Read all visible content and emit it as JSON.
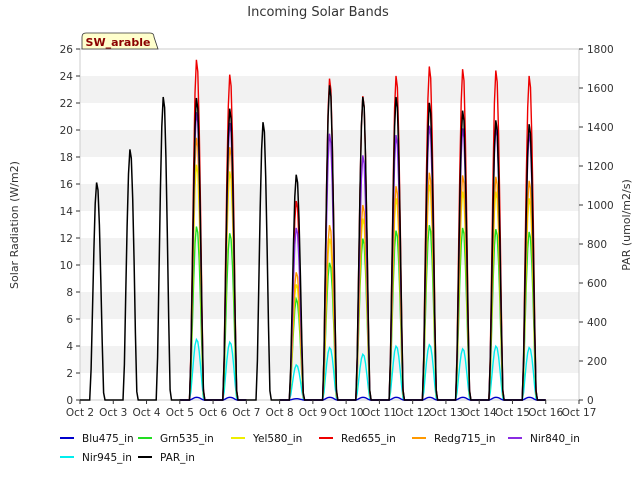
{
  "chart_data": {
    "type": "line",
    "title": "Incoming Solar Bands",
    "tag": "SW_arable",
    "ylabel_left": "Solar Radiation (W/m2)",
    "ylabel_right": "PAR (umol/m2/s)",
    "xlabel": "",
    "x_ticks": [
      "Oct 2",
      "Oct 3",
      "Oct 4",
      "Oct 5",
      "Oct 6",
      "Oct 7",
      "Oct 8",
      "Oct 9",
      "Oct 10",
      "Oct 11",
      "Oct 12",
      "Oct 13",
      "Oct 14",
      "Oct 15",
      "Oct 16",
      "Oct 17"
    ],
    "xlim": [
      0,
      15
    ],
    "ylim_left": [
      0,
      26
    ],
    "ylim_right": [
      0,
      1800
    ],
    "y_ticks_left": [
      "0",
      "2",
      "4",
      "6",
      "8",
      "10",
      "12",
      "14",
      "16",
      "18",
      "20",
      "22",
      "24",
      "26"
    ],
    "y_ticks_right": [
      "0",
      "200",
      "400",
      "600",
      "800",
      "1000",
      "1200",
      "1400",
      "1600",
      "1800"
    ],
    "grid": "horizontal bands",
    "legend_position": "bottom",
    "days": [
      {
        "start": "Oct 2",
        "Blu475_in": null,
        "Grn535_in": null,
        "Yel580_in": null,
        "Red655_in": null,
        "Redg715_in": null,
        "Nir840_in": null,
        "Nir945_in": null,
        "PAR_in": 1120
      },
      {
        "start": "Oct 3",
        "Blu475_in": null,
        "Grn535_in": null,
        "Yel580_in": null,
        "Red655_in": null,
        "Redg715_in": null,
        "Nir840_in": null,
        "Nir945_in": null,
        "PAR_in": 1290
      },
      {
        "start": "Oct 4",
        "Blu475_in": null,
        "Grn535_in": null,
        "Yel580_in": null,
        "Red655_in": null,
        "Redg715_in": null,
        "Nir840_in": null,
        "Nir945_in": null,
        "PAR_in": 1560
      },
      {
        "start": "Oct 5",
        "Blu475_in": 0.2,
        "Grn535_in": 12.9,
        "Yel580_in": 17.5,
        "Red655_in": 25.3,
        "Redg715_in": 19.5,
        "Nir840_in": 21.4,
        "Nir945_in": 4.5,
        "PAR_in": 1555
      },
      {
        "start": "Oct 6",
        "Blu475_in": 0.2,
        "Grn535_in": 12.4,
        "Yel580_in": 17.0,
        "Red655_in": 24.2,
        "Redg715_in": 18.8,
        "Nir840_in": 20.6,
        "Nir945_in": 4.3,
        "PAR_in": 1500
      },
      {
        "start": "Oct 7",
        "Blu475_in": null,
        "Grn535_in": null,
        "Yel580_in": null,
        "Red655_in": null,
        "Redg715_in": null,
        "Nir840_in": null,
        "Nir945_in": null,
        "PAR_in": 1430
      },
      {
        "start": "Oct 8",
        "Blu475_in": 0.1,
        "Grn535_in": 7.5,
        "Yel580_in": 8.6,
        "Red655_in": 14.8,
        "Redg715_in": 9.5,
        "Nir840_in": 12.8,
        "Nir945_in": 2.6,
        "PAR_in": 1160
      },
      {
        "start": "Oct 9",
        "Blu475_in": 0.2,
        "Grn535_in": 10.2,
        "Yel580_in": 12.0,
        "Red655_in": 23.9,
        "Redg715_in": 13.0,
        "Nir840_in": 19.8,
        "Nir945_in": 3.9,
        "PAR_in": 1620
      },
      {
        "start": "Oct 10",
        "Blu475_in": 0.2,
        "Grn535_in": 12.0,
        "Yel580_in": 13.5,
        "Red655_in": 22.6,
        "Redg715_in": 14.5,
        "Nir840_in": 18.2,
        "Nir945_in": 3.4,
        "PAR_in": 1560
      },
      {
        "start": "Oct 11",
        "Blu475_in": 0.2,
        "Grn535_in": 12.6,
        "Yel580_in": 15.0,
        "Red655_in": 24.1,
        "Redg715_in": 15.9,
        "Nir840_in": 19.7,
        "Nir945_in": 4.0,
        "PAR_in": 1560
      },
      {
        "start": "Oct 12",
        "Blu475_in": 0.2,
        "Grn535_in": 13.0,
        "Yel580_in": 16.0,
        "Red655_in": 24.8,
        "Redg715_in": 16.9,
        "Nir840_in": 20.4,
        "Nir945_in": 4.1,
        "PAR_in": 1530
      },
      {
        "start": "Oct 13",
        "Blu475_in": 0.2,
        "Grn535_in": 12.8,
        "Yel580_in": 15.5,
        "Red655_in": 24.6,
        "Redg715_in": 16.7,
        "Nir840_in": 20.2,
        "Nir945_in": 3.8,
        "PAR_in": 1490
      },
      {
        "start": "Oct 14",
        "Blu475_in": 0.2,
        "Grn535_in": 12.7,
        "Yel580_in": 15.5,
        "Red655_in": 24.5,
        "Redg715_in": 16.6,
        "Nir840_in": 20.3,
        "Nir945_in": 4.0,
        "PAR_in": 1440
      },
      {
        "start": "Oct 15",
        "Blu475_in": 0.2,
        "Grn535_in": 12.5,
        "Yel580_in": 15.0,
        "Red655_in": 24.1,
        "Redg715_in": 16.3,
        "Nir840_in": 19.8,
        "Nir945_in": 3.9,
        "PAR_in": 1420
      }
    ],
    "series": [
      {
        "name": "Blu475_in",
        "color": "#0000cc",
        "axis": "left"
      },
      {
        "name": "Grn535_in",
        "color": "#22dd22",
        "axis": "left"
      },
      {
        "name": "Yel580_in",
        "color": "#eeee00",
        "axis": "left"
      },
      {
        "name": "Red655_in",
        "color": "#ee0000",
        "axis": "left"
      },
      {
        "name": "Redg715_in",
        "color": "#ff9900",
        "axis": "left"
      },
      {
        "name": "Nir840_in",
        "color": "#8a2be2",
        "axis": "left"
      },
      {
        "name": "Nir945_in",
        "color": "#00eeee",
        "axis": "left"
      },
      {
        "name": "PAR_in",
        "color": "#000000",
        "axis": "right"
      }
    ]
  }
}
